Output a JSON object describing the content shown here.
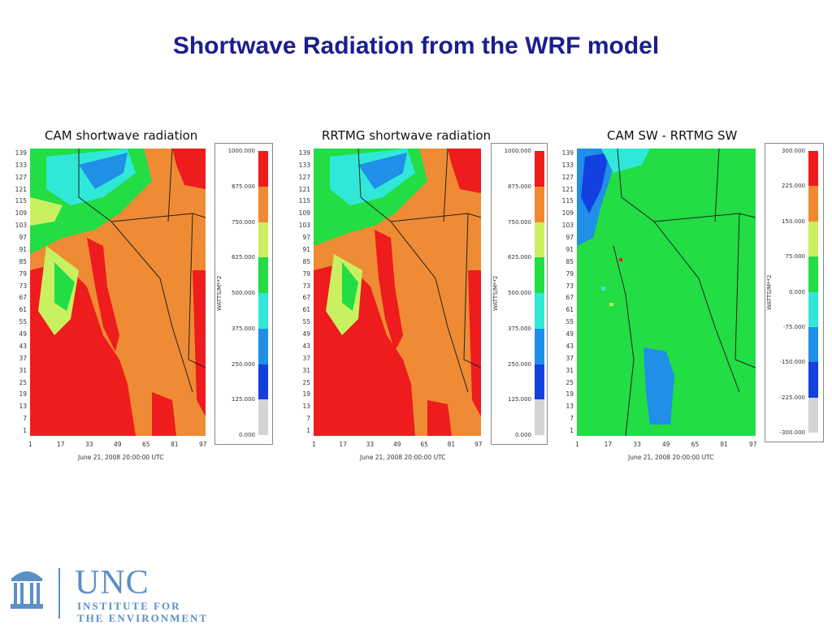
{
  "title": "Shortwave Radiation from the WRF model",
  "panels": [
    {
      "title": "CAM shortwave radiation",
      "date": "June 21, 2008 20:00:00 UTC",
      "legend": {
        "units": "WATTS/M**2",
        "values": [
          "1000.000",
          "875.000",
          "750.000",
          "625.000",
          "500.000",
          "375.000",
          "250.000",
          "125.000",
          "0.000"
        ],
        "colors": [
          "#ee1c1c",
          "#f08a30",
          "#c8f060",
          "#22dd44",
          "#30e8d8",
          "#1f8fe8",
          "#1540e0",
          "#d4d4d4"
        ]
      }
    },
    {
      "title": "RRTMG shortwave radiation",
      "date": "June 21, 2008 20:00:00 UTC",
      "legend": {
        "units": "WATTS/M**2",
        "values": [
          "1000.000",
          "875.000",
          "750.000",
          "625.000",
          "500.000",
          "375.000",
          "250.000",
          "125.000",
          "0.000"
        ],
        "colors": [
          "#ee1c1c",
          "#f08a30",
          "#c8f060",
          "#22dd44",
          "#30e8d8",
          "#1f8fe8",
          "#1540e0",
          "#d4d4d4"
        ]
      }
    },
    {
      "title": "CAM SW - RRTMG SW",
      "date": "June 21, 2008 20:00:00 UTC",
      "legend": {
        "units": "WATTS/M**2",
        "values": [
          "300.000",
          "225.000",
          "150.000",
          "75.000",
          "0.000",
          "-75.000",
          "-150.000",
          "-225.000",
          "-300.000"
        ],
        "colors": [
          "#ee1c1c",
          "#f08a30",
          "#c8f060",
          "#22dd44",
          "#30e8d8",
          "#1f8fe8",
          "#1540e0",
          "#d4d4d4"
        ]
      }
    }
  ],
  "y_ticks": [
    "139",
    "133",
    "127",
    "121",
    "115",
    "109",
    "103",
    "97",
    "91",
    "85",
    "79",
    "73",
    "67",
    "61",
    "55",
    "49",
    "43",
    "37",
    "31",
    "25",
    "19",
    "13",
    "7",
    "1"
  ],
  "x_ticks": [
    "1",
    "17",
    "33",
    "49",
    "65",
    "81",
    "97"
  ],
  "logo": {
    "name": "UNC",
    "line1": "INSTITUTE FOR",
    "line2": "THE ENVIRONMENT"
  }
}
